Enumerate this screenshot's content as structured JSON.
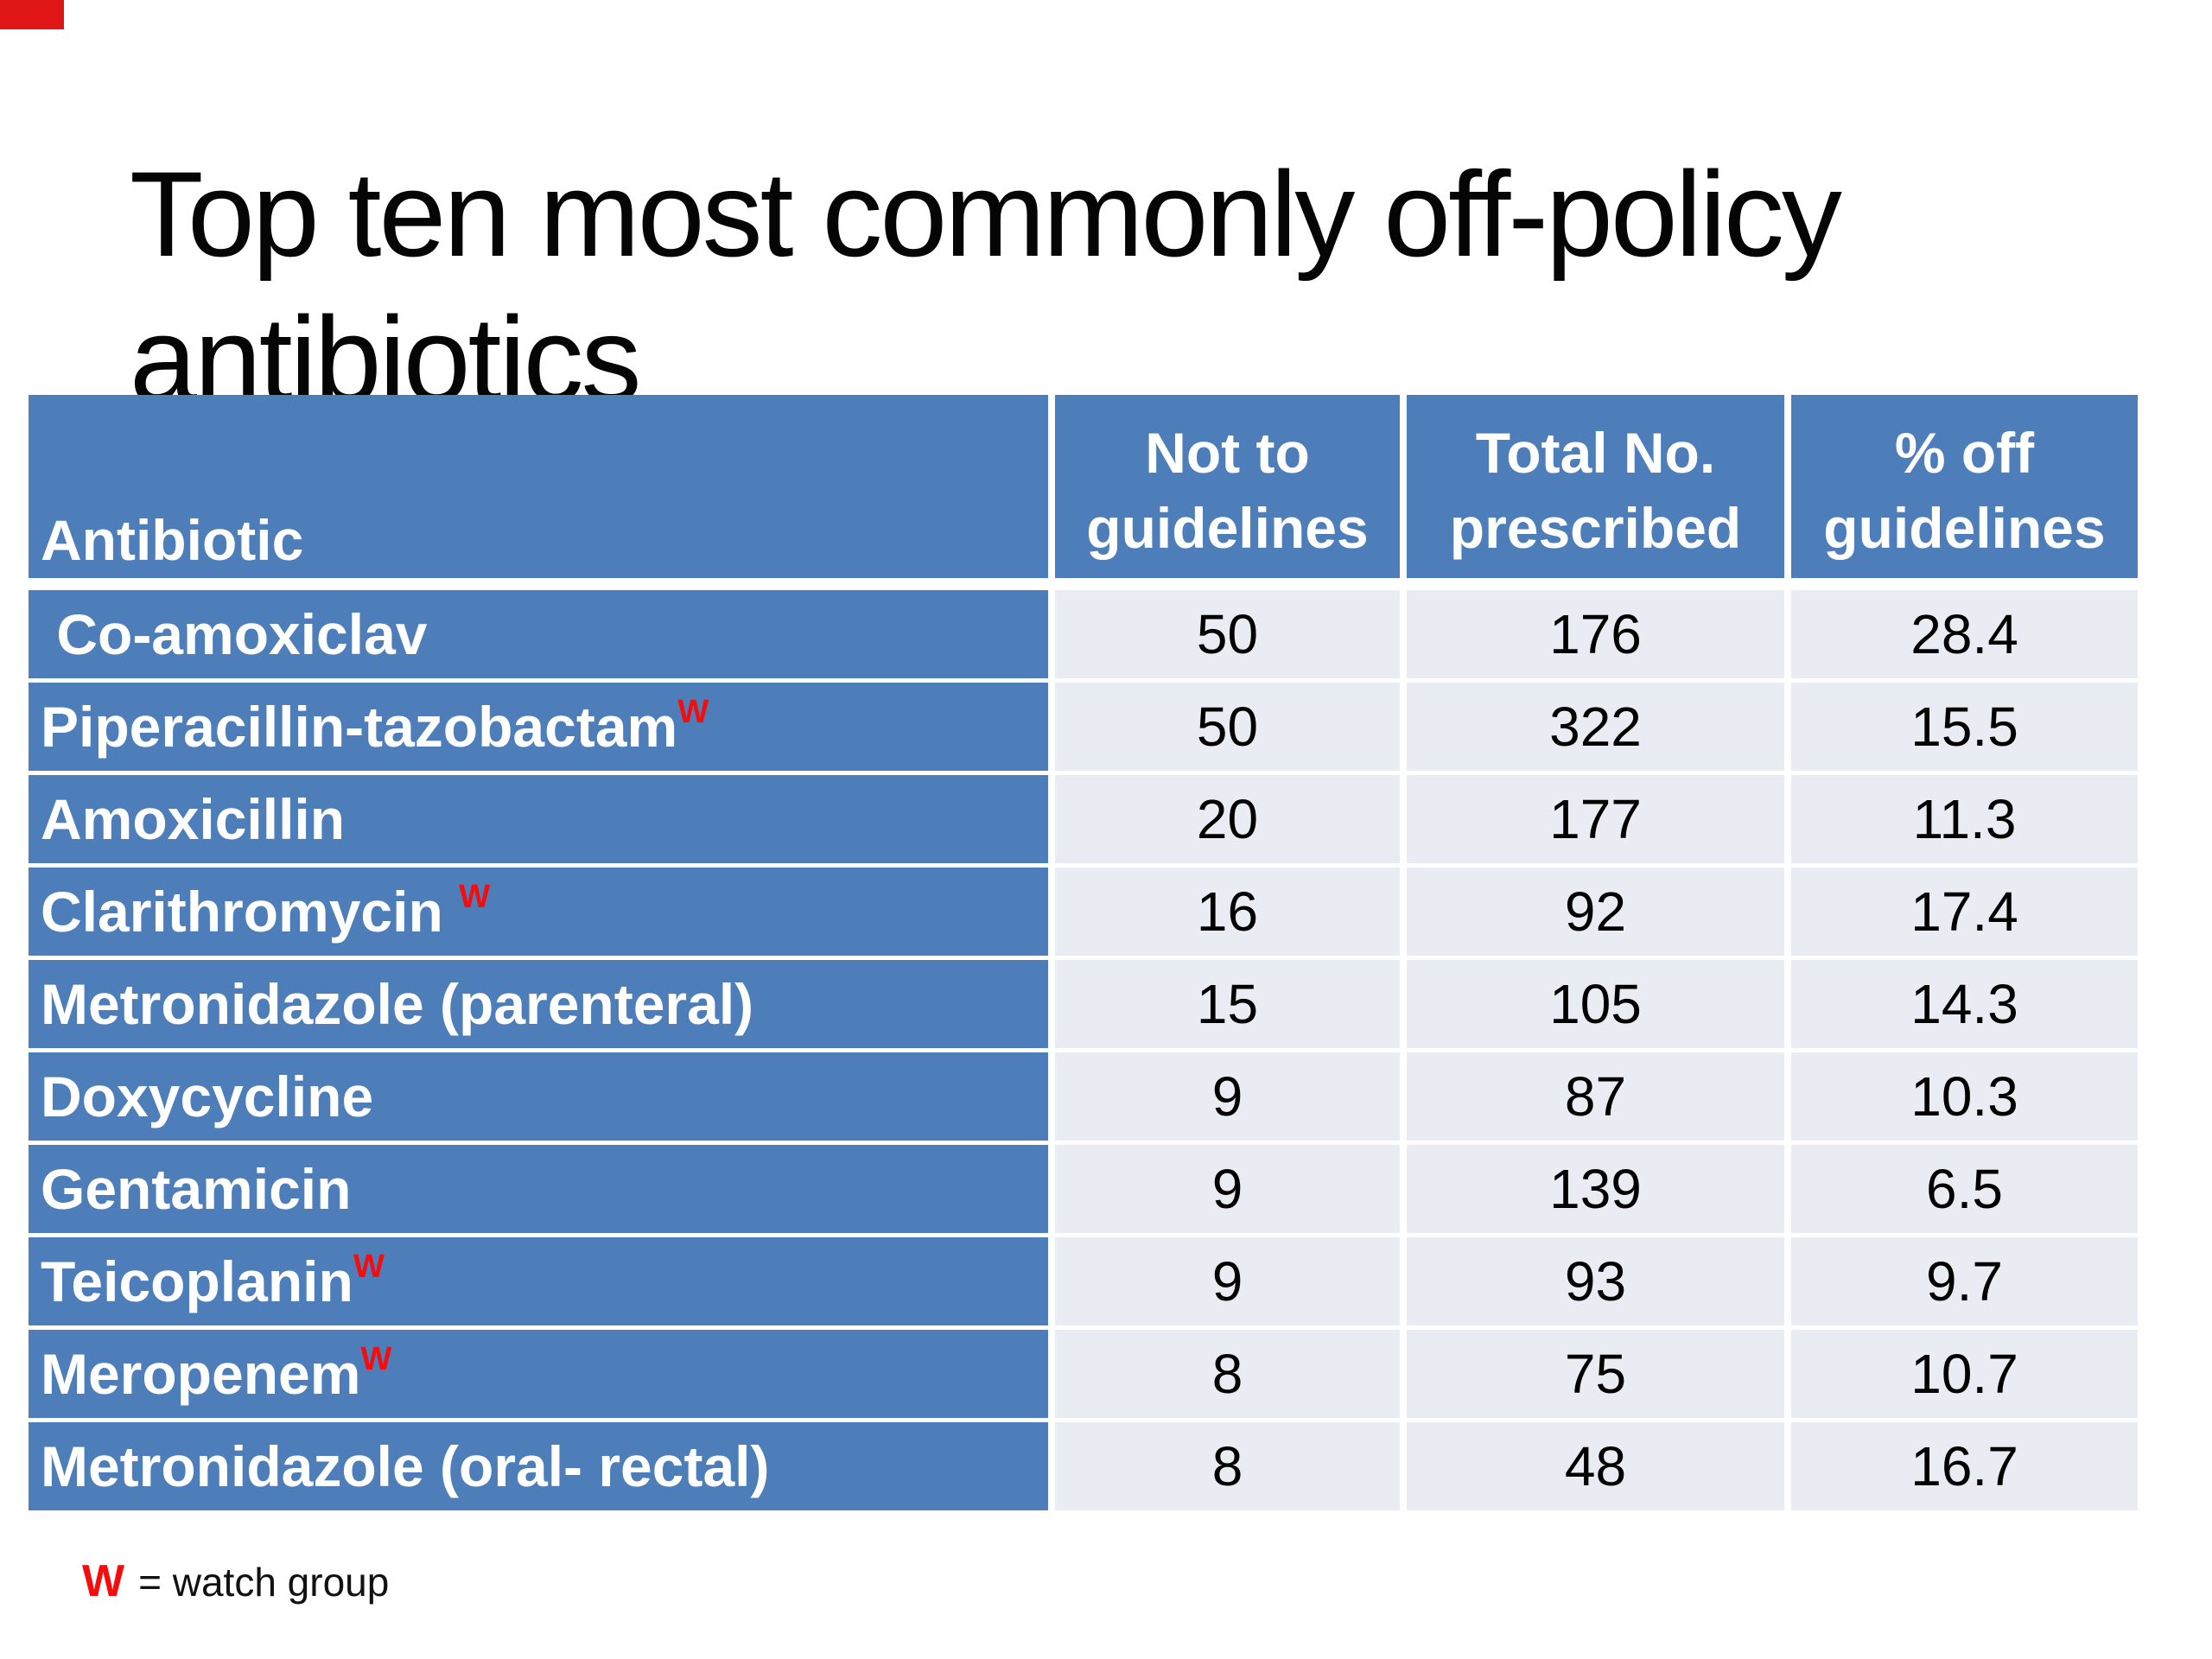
{
  "slide": {
    "title_line1": "Top ten most commonly off-policy",
    "title_line2": "antibiotics"
  },
  "table": {
    "header": {
      "antibiotic": "Antibiotic",
      "not_to": "Not to guidelines",
      "total": "Total No. prescribed",
      "pct": "% off guidelines"
    },
    "rows": [
      {
        "name": " Co-amoxiclav",
        "mark": "",
        "not_to": "50",
        "total": "176",
        "pct": "28.4"
      },
      {
        "name": "Piperacillin-tazobactam",
        "mark": "W",
        "not_to": "50",
        "total": "322",
        "pct": "15.5"
      },
      {
        "name": "Amoxicillin",
        "mark": "",
        "not_to": "20",
        "total": "177",
        "pct": "11.3"
      },
      {
        "name": "Clarithromycin ",
        "mark": "W",
        "not_to": "16",
        "total": "92",
        "pct": "17.4"
      },
      {
        "name": "Metronidazole (parenteral)",
        "mark": "",
        "not_to": "15",
        "total": "105",
        "pct": "14.3"
      },
      {
        "name": "Doxycycline",
        "mark": "",
        "not_to": "9",
        "total": "87",
        "pct": "10.3"
      },
      {
        "name": "Gentamicin",
        "mark": "",
        "not_to": "9",
        "total": "139",
        "pct": "6.5"
      },
      {
        "name": "Teicoplanin",
        "mark": "W",
        "not_to": "9",
        "total": "93",
        "pct": "9.7"
      },
      {
        "name": "Meropenem",
        "mark": "W",
        "not_to": "8",
        "total": "75",
        "pct": "10.7"
      },
      {
        "name": "Metronidazole (oral- rectal)",
        "mark": "",
        "not_to": "8",
        "total": "48",
        "pct": "16.7"
      }
    ]
  },
  "footnote": {
    "symbol": "W",
    "text": "= watch group"
  },
  "colors": {
    "header_blue": "#4d7eba",
    "row_label_blue": "#4d7eba",
    "data_cell_bg": "#eaecf3",
    "watch_red": "#f50d0d",
    "corner_marker_red": "#e01515",
    "title_black": "#050505"
  }
}
